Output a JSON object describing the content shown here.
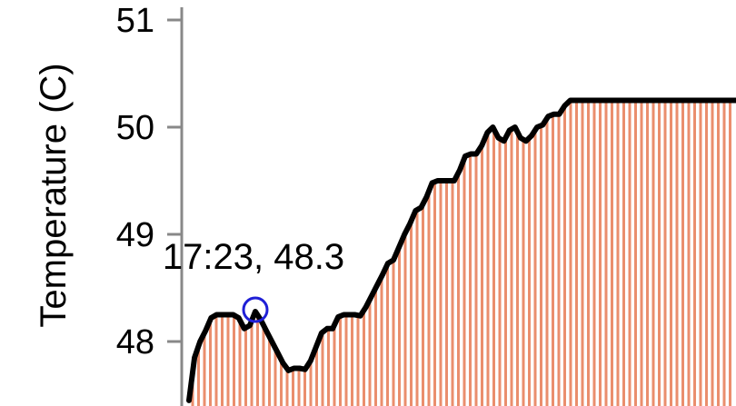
{
  "chart_data": {
    "type": "area",
    "ylabel": "Temperature (C)",
    "xlabel": "",
    "ylim": [
      47.4,
      51.1
    ],
    "yticks": [
      48,
      49,
      50,
      51
    ],
    "ytick_labels": [
      "48",
      "49",
      "50",
      "51"
    ],
    "series": [
      {
        "x": [
          0,
          1,
          2,
          3,
          4,
          5,
          6,
          7,
          8,
          9,
          10,
          11,
          12,
          13,
          14,
          15,
          16,
          17,
          18,
          19,
          20,
          21,
          22,
          23,
          24,
          25,
          26,
          27,
          28,
          29,
          30,
          31,
          32,
          33,
          34,
          35,
          36,
          37,
          38,
          39,
          40,
          41,
          42,
          43,
          44,
          45,
          46,
          47,
          48,
          49,
          50,
          51,
          52,
          53,
          54,
          55,
          56,
          57,
          58,
          59,
          60,
          61,
          62,
          63,
          64,
          65,
          66,
          67,
          68,
          69,
          70,
          71,
          72,
          73,
          74,
          75,
          76,
          77,
          78,
          79,
          80,
          81,
          82,
          83,
          84,
          85,
          86,
          87,
          88,
          89,
          90,
          91,
          92,
          93,
          94,
          95,
          96,
          97,
          98,
          99
        ],
        "values": [
          47.45,
          47.85,
          48.0,
          48.1,
          48.22,
          48.25,
          48.25,
          48.25,
          48.25,
          48.22,
          48.12,
          48.15,
          48.28,
          48.2,
          48.1,
          48.0,
          47.9,
          47.8,
          47.73,
          47.75,
          47.75,
          47.74,
          47.82,
          47.95,
          48.08,
          48.12,
          48.12,
          48.23,
          48.25,
          48.25,
          48.25,
          48.24,
          48.32,
          48.42,
          48.52,
          48.62,
          48.73,
          48.76,
          48.88,
          49.0,
          49.1,
          49.22,
          49.25,
          49.35,
          49.48,
          49.5,
          49.5,
          49.5,
          49.5,
          49.6,
          49.73,
          49.75,
          49.75,
          49.83,
          49.95,
          50.0,
          49.9,
          49.87,
          49.97,
          50.0,
          49.9,
          49.87,
          49.92,
          50.0,
          50.02,
          50.1,
          50.12,
          50.12,
          50.2,
          50.25,
          50.25,
          50.25,
          50.25,
          50.25,
          50.25,
          50.25,
          50.25,
          50.25,
          50.25,
          50.25,
          50.25,
          50.25,
          50.25,
          50.25,
          50.25,
          50.25,
          50.25,
          50.25,
          50.25,
          50.25,
          50.25,
          50.25,
          50.25,
          50.25,
          50.25,
          50.25,
          50.25,
          50.25,
          50.25,
          50.25
        ]
      }
    ],
    "annotation": {
      "text": "17:23, 48.3",
      "x": 12,
      "y": 48.28
    }
  },
  "colors": {
    "bar_fill": "#ea8e6d",
    "line": "#000000",
    "marker": "#1f1fd6",
    "axis": "#888888"
  }
}
